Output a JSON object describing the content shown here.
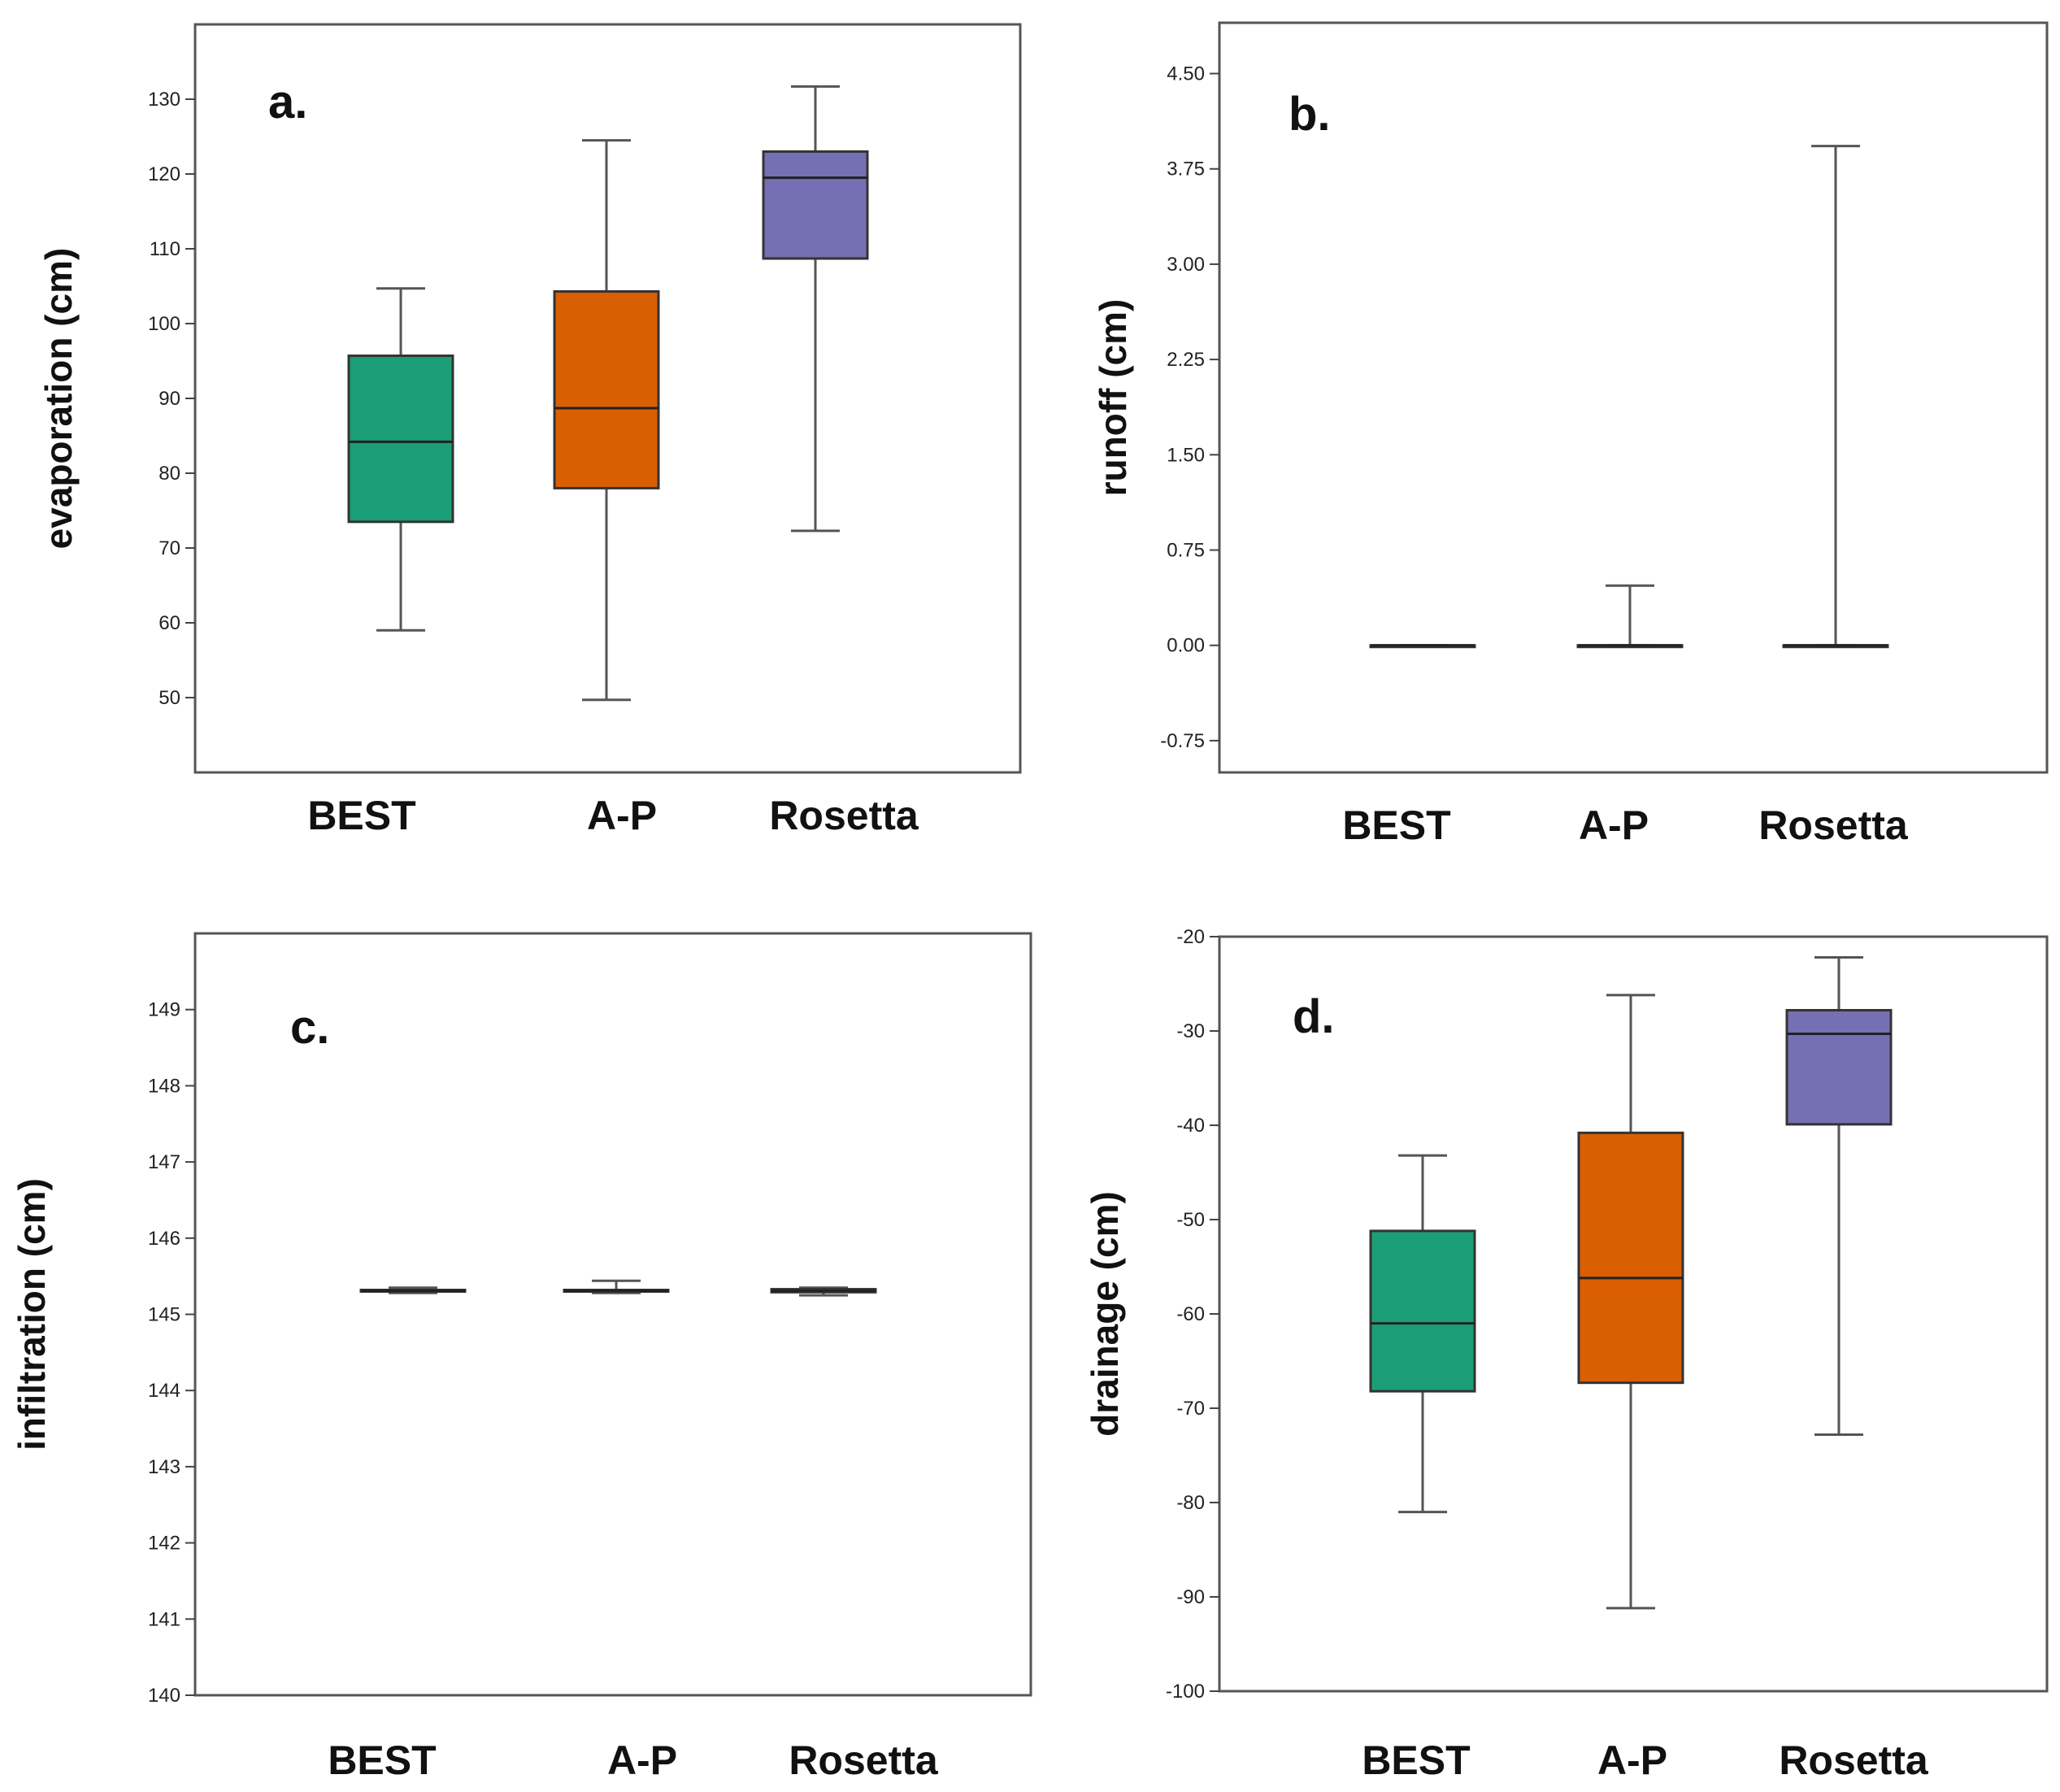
{
  "colors": {
    "BEST": "#1b9e77",
    "A-P": "#d95f02",
    "Rosetta": "#7570b3"
  },
  "chart_data": [
    {
      "type": "box",
      "panel": "a.",
      "ylabel": "evaporation  (cm)",
      "categories": [
        "BEST",
        "A-P",
        "Rosetta"
      ],
      "ylim": [
        40,
        140
      ],
      "yticks": [
        "50",
        "60",
        "70",
        "80",
        "90",
        "100",
        "110",
        "120",
        "130"
      ],
      "series": [
        {
          "name": "BEST",
          "min": 59,
          "q1": 73.5,
          "median": 84.2,
          "q3": 95.7,
          "max": 104.7
        },
        {
          "name": "A-P",
          "min": 49.7,
          "q1": 78,
          "median": 88.7,
          "q3": 104.3,
          "max": 124.5
        },
        {
          "name": "Rosetta",
          "min": 72.3,
          "q1": 108.7,
          "median": 119.5,
          "q3": 123,
          "max": 131.7
        }
      ]
    },
    {
      "type": "box",
      "panel": "b.",
      "ylabel": "runoff (cm)",
      "categories": [
        "BEST",
        "A-P",
        "Rosetta"
      ],
      "ylim": [
        -1.0,
        4.9
      ],
      "yticks": [
        "-0.75",
        "0.00",
        "0.75",
        "1.50",
        "2.25",
        "3.00",
        "3.75",
        "4.50"
      ],
      "series": [
        {
          "name": "BEST",
          "min": 0,
          "q1": 0,
          "median": 0,
          "q3": 0,
          "max": 0
        },
        {
          "name": "A-P",
          "min": 0,
          "q1": 0,
          "median": 0,
          "q3": 0,
          "max": 0.47
        },
        {
          "name": "Rosetta",
          "min": 0,
          "q1": 0,
          "median": 0,
          "q3": 0,
          "max": 3.93
        }
      ]
    },
    {
      "type": "box",
      "panel": "c.",
      "ylabel": "infiltration (cm)",
      "categories": [
        "BEST",
        "A-P",
        "Rosetta"
      ],
      "ylim": [
        140,
        150
      ],
      "yticks": [
        "140",
        "141",
        "142",
        "143",
        "144",
        "145",
        "146",
        "147",
        "148",
        "149"
      ],
      "series": [
        {
          "name": "BEST",
          "min": 145.28,
          "q1": 145.3,
          "median": 145.31,
          "q3": 145.32,
          "max": 145.35
        },
        {
          "name": "A-P",
          "min": 145.28,
          "q1": 145.3,
          "median": 145.31,
          "q3": 145.32,
          "max": 145.44
        },
        {
          "name": "Rosetta",
          "min": 145.25,
          "q1": 145.29,
          "median": 145.31,
          "q3": 145.33,
          "max": 145.35
        }
      ]
    },
    {
      "type": "box",
      "panel": "d.",
      "ylabel": "drainage (cm)",
      "categories": [
        "BEST",
        "A-P",
        "Rosetta"
      ],
      "ylim": [
        -100,
        -20
      ],
      "yticks": [
        "-100",
        "-90",
        "-80",
        "-70",
        "-60",
        "-50",
        "-40",
        "-30",
        "-20"
      ],
      "series": [
        {
          "name": "BEST",
          "min": -81,
          "q1": -68.2,
          "median": -61,
          "q3": -51.2,
          "max": -43.2
        },
        {
          "name": "A-P",
          "min": -91.2,
          "q1": -67.3,
          "median": -56.2,
          "q3": -40.8,
          "max": -26.2
        },
        {
          "name": "Rosetta",
          "min": -72.8,
          "q1": -39.9,
          "median": -30.3,
          "q3": -27.8,
          "max": -22.2
        }
      ]
    }
  ]
}
